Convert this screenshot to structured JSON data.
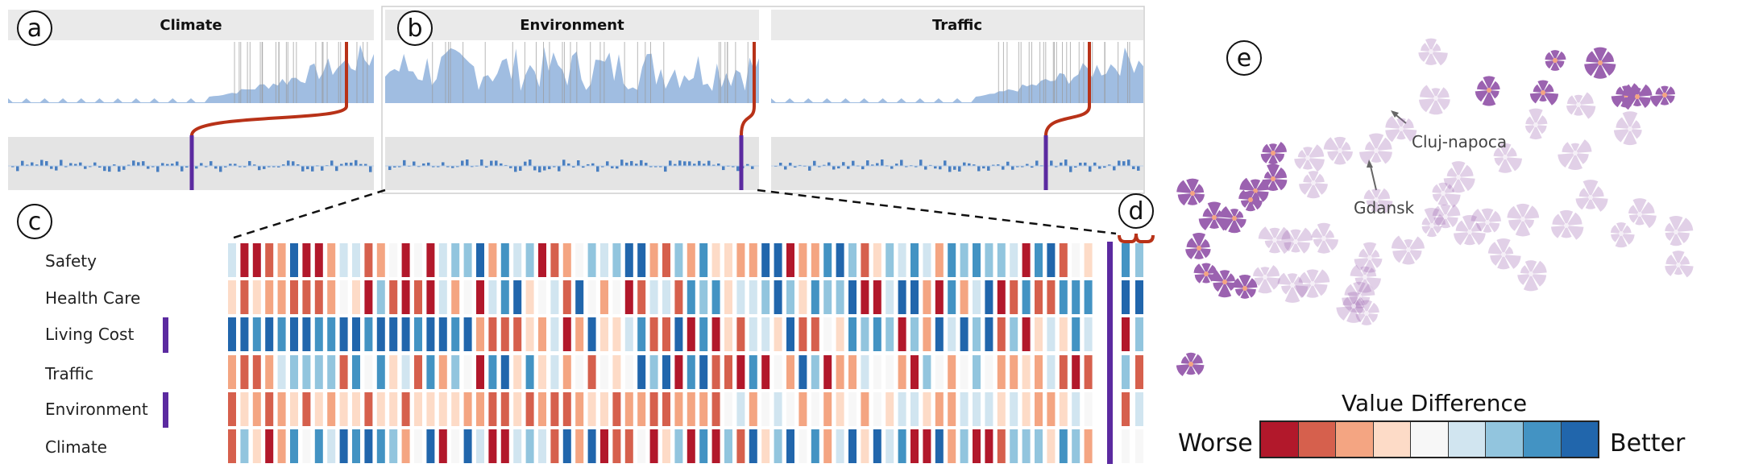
{
  "panels": [
    {
      "letter": "a",
      "title": "Climate"
    },
    {
      "letter": "b",
      "title": "Environment"
    },
    {
      "letter": "c",
      "title": "Traffic"
    }
  ],
  "labels": {
    "a": "a",
    "b": "b",
    "c": "c",
    "d": "d",
    "e": "e"
  },
  "panel_titles": {
    "climate": "Climate",
    "environment": "Environment",
    "traffic": "Traffic"
  },
  "rows": [
    "Safety",
    "Health Care",
    "Living Cost",
    "Traffic",
    "Environment",
    "Climate"
  ],
  "selected_rows": [
    "Living Cost",
    "Environment"
  ],
  "map_labels": {
    "cluj": "Cluj-napoca",
    "gdansk": "Gdansk"
  },
  "legend": {
    "title": "Value Difference",
    "left": "Worse",
    "right": "Better",
    "colors": [
      "#b2182b",
      "#d6604d",
      "#f4a582",
      "#fddbc7",
      "#f7f7f7",
      "#d1e5f0",
      "#92c5de",
      "#4393c3",
      "#2166ac"
    ]
  },
  "colors": {
    "selection": "#5b2aa0",
    "highlight": "#b83218",
    "area": "#8fb2dc",
    "glyph": "#9b62b0"
  }
}
